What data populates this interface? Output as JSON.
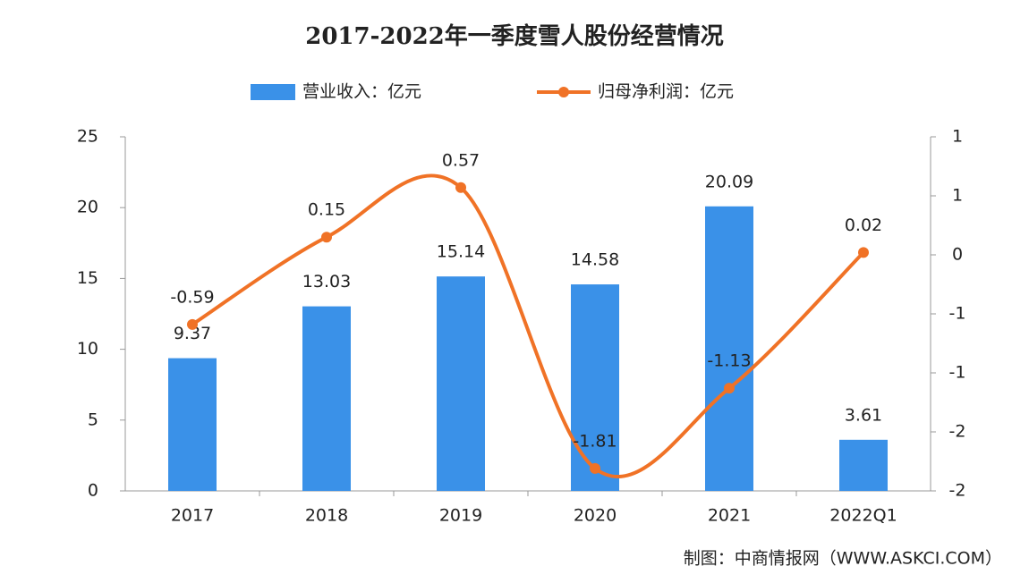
{
  "chart_data": {
    "type": "bar_line",
    "title": "2017-2022年一季度雪人股份经营情况",
    "categories": [
      "2017",
      "2018",
      "2019",
      "2020",
      "2021",
      "2022Q1"
    ],
    "series": [
      {
        "name": "营业收入：亿元",
        "type": "bar",
        "color": "#3a91e8",
        "values": [
          9.37,
          13.03,
          15.14,
          14.58,
          20.09,
          3.61
        ]
      },
      {
        "name": "归母净利润：亿元",
        "type": "line",
        "axis": "y2",
        "color": "#f07226",
        "values": [
          -0.59,
          0.15,
          0.57,
          -1.81,
          -1.13,
          0.02
        ]
      }
    ],
    "ylim": [
      0,
      25
    ],
    "yticks": [
      0,
      5,
      10,
      15,
      20,
      25
    ],
    "y2lim": [
      -2,
      1
    ],
    "y2ticks": [
      {
        "value": -2,
        "label": "-2"
      },
      {
        "value": -1.5,
        "label": "-2"
      },
      {
        "value": -1,
        "label": "-1"
      },
      {
        "value": -0.5,
        "label": "-1"
      },
      0,
      {
        "value": 0.5,
        "label": "1"
      },
      1
    ],
    "source": "制图：中商情报网（WWW.ASKCI.COM）"
  }
}
